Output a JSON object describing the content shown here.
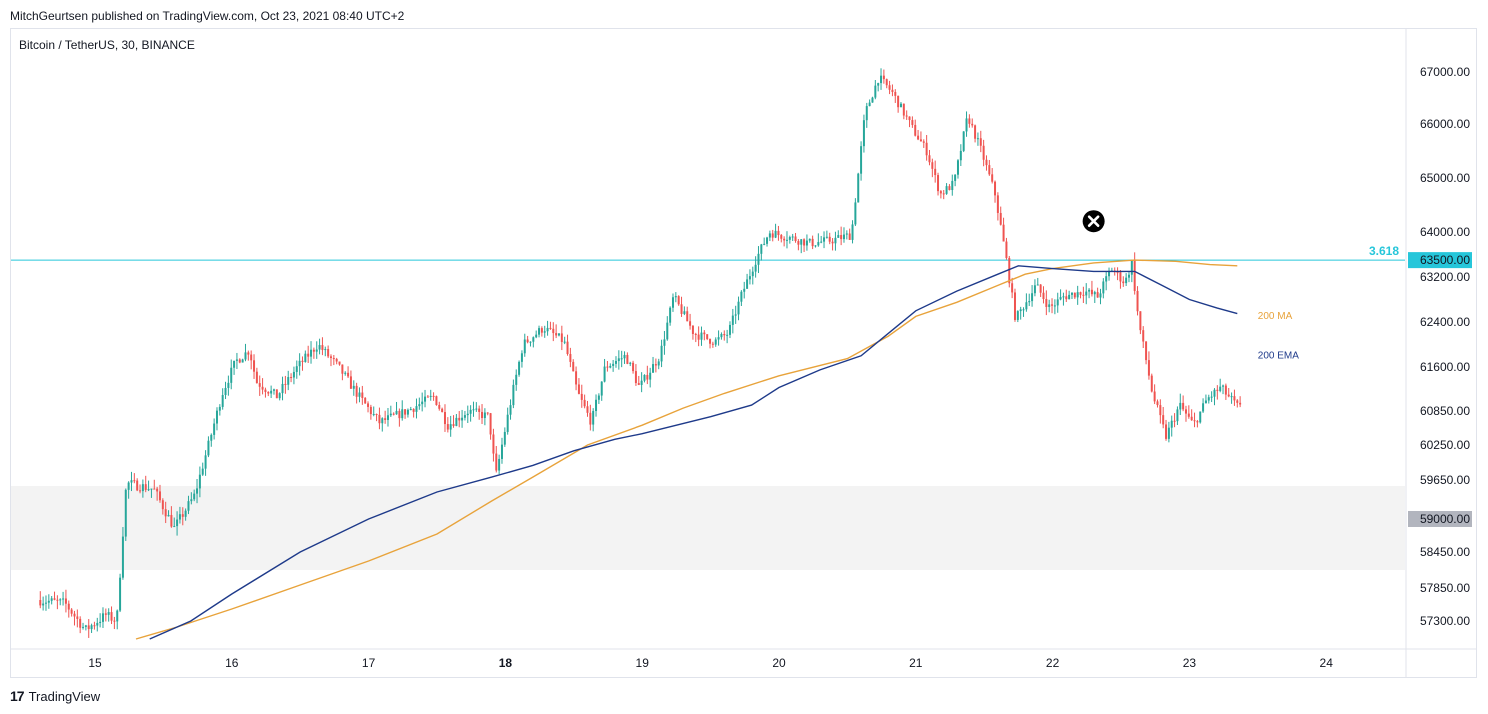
{
  "header": {
    "publisher_line": "MitchGeurtsen published on TradingView.com, Oct 23, 2021 08:40 UTC+2"
  },
  "symbol": {
    "title": "Bitcoin / TetherUS, 30, BINANCE"
  },
  "footer": {
    "brand_mark": "17",
    "brand_text": "TradingView"
  },
  "colors": {
    "up": "#26a69a",
    "down": "#ef5350",
    "ma": "#e8a33b",
    "ema": "#1e3a8a",
    "level": "#26c6da",
    "zone": "#f3f3f3",
    "grid": "#e0e3eb"
  },
  "chart_data": {
    "type": "candlestick",
    "title": "Bitcoin / TetherUS, 30, BINANCE",
    "x_ticks": [
      {
        "label": "15",
        "day": 15
      },
      {
        "label": "16",
        "day": 16
      },
      {
        "label": "17",
        "day": 17
      },
      {
        "label": "18",
        "day": 18,
        "bold": true
      },
      {
        "label": "19",
        "day": 19
      },
      {
        "label": "20",
        "day": 20
      },
      {
        "label": "21",
        "day": 21
      },
      {
        "label": "22",
        "day": 22
      },
      {
        "label": "23",
        "day": 23
      },
      {
        "label": "24",
        "day": 24
      }
    ],
    "y_ticks": [
      {
        "label": "67000.00",
        "value": 67000
      },
      {
        "label": "66000.00",
        "value": 66000
      },
      {
        "label": "65000.00",
        "value": 65000
      },
      {
        "label": "64000.00",
        "value": 64000
      },
      {
        "label": "63200.00",
        "value": 63200
      },
      {
        "label": "62400.00",
        "value": 62400
      },
      {
        "label": "61600.00",
        "value": 61600
      },
      {
        "label": "60850.00",
        "value": 60850
      },
      {
        "label": "60250.00",
        "value": 60250
      },
      {
        "label": "59650.00",
        "value": 59650
      },
      {
        "label": "58450.00",
        "value": 58450
      },
      {
        "label": "57850.00",
        "value": 57850
      },
      {
        "label": "57300.00",
        "value": 57300
      }
    ],
    "price_tags": [
      {
        "label": "63500.00",
        "value": 63500,
        "style": "level"
      },
      {
        "label": "59000.00",
        "value": 59000,
        "style": "zone"
      }
    ],
    "level_line": {
      "value": 63500,
      "label": "3.618"
    },
    "zone": {
      "from": 58150,
      "to": 59550
    },
    "series": [
      {
        "name": "200 MA",
        "points": [
          {
            "day": 15.3,
            "value": 57000
          },
          {
            "day": 15.6,
            "value": 57200
          },
          {
            "day": 16.0,
            "value": 57500
          },
          {
            "day": 16.5,
            "value": 57900
          },
          {
            "day": 17.0,
            "value": 58300
          },
          {
            "day": 17.5,
            "value": 58750
          },
          {
            "day": 17.9,
            "value": 59300
          },
          {
            "day": 18.2,
            "value": 59700
          },
          {
            "day": 18.6,
            "value": 60250
          },
          {
            "day": 19.0,
            "value": 60600
          },
          {
            "day": 19.3,
            "value": 60900
          },
          {
            "day": 19.6,
            "value": 61150
          },
          {
            "day": 20.0,
            "value": 61450
          },
          {
            "day": 20.5,
            "value": 61750
          },
          {
            "day": 20.8,
            "value": 62150
          },
          {
            "day": 21.0,
            "value": 62500
          },
          {
            "day": 21.3,
            "value": 62750
          },
          {
            "day": 21.6,
            "value": 63050
          },
          {
            "day": 21.8,
            "value": 63250
          },
          {
            "day": 22.0,
            "value": 63350
          },
          {
            "day": 22.3,
            "value": 63450
          },
          {
            "day": 22.6,
            "value": 63500
          },
          {
            "day": 22.9,
            "value": 63480
          },
          {
            "day": 23.15,
            "value": 63420
          },
          {
            "day": 23.35,
            "value": 63400
          }
        ]
      },
      {
        "name": "200 EMA",
        "points": [
          {
            "day": 15.4,
            "value": 57000
          },
          {
            "day": 15.7,
            "value": 57300
          },
          {
            "day": 16.0,
            "value": 57750
          },
          {
            "day": 16.5,
            "value": 58450
          },
          {
            "day": 17.0,
            "value": 59000
          },
          {
            "day": 17.5,
            "value": 59450
          },
          {
            "day": 17.9,
            "value": 59700
          },
          {
            "day": 18.2,
            "value": 59900
          },
          {
            "day": 18.5,
            "value": 60150
          },
          {
            "day": 18.8,
            "value": 60350
          },
          {
            "day": 19.0,
            "value": 60450
          },
          {
            "day": 19.5,
            "value": 60750
          },
          {
            "day": 19.8,
            "value": 60950
          },
          {
            "day": 20.0,
            "value": 61250
          },
          {
            "day": 20.3,
            "value": 61550
          },
          {
            "day": 20.6,
            "value": 61800
          },
          {
            "day": 20.8,
            "value": 62200
          },
          {
            "day": 21.0,
            "value": 62600
          },
          {
            "day": 21.3,
            "value": 62950
          },
          {
            "day": 21.6,
            "value": 63250
          },
          {
            "day": 21.75,
            "value": 63400
          },
          {
            "day": 22.0,
            "value": 63350
          },
          {
            "day": 22.3,
            "value": 63300
          },
          {
            "day": 22.6,
            "value": 63300
          },
          {
            "day": 22.8,
            "value": 63050
          },
          {
            "day": 23.0,
            "value": 62800
          },
          {
            "day": 23.2,
            "value": 62650
          },
          {
            "day": 23.35,
            "value": 62550
          }
        ]
      }
    ],
    "series_labels": [
      {
        "name": "200 MA",
        "color_key": "ma",
        "day": 23.5,
        "value": 62450
      },
      {
        "name": "200 EMA",
        "color_key": "ema",
        "day": 23.5,
        "value": 61750
      }
    ],
    "marker": {
      "type": "x-circle",
      "day": 22.3,
      "value": 64200
    },
    "price_path": [
      {
        "day": 14.6,
        "value": 57650
      },
      {
        "day": 14.8,
        "value": 57600
      },
      {
        "day": 14.95,
        "value": 57150
      },
      {
        "day": 15.1,
        "value": 57400
      },
      {
        "day": 15.18,
        "value": 57300
      },
      {
        "day": 15.25,
        "value": 59600
      },
      {
        "day": 15.45,
        "value": 59500
      },
      {
        "day": 15.6,
        "value": 58850
      },
      {
        "day": 15.75,
        "value": 59400
      },
      {
        "day": 15.85,
        "value": 60250
      },
      {
        "day": 15.95,
        "value": 61150
      },
      {
        "day": 16.05,
        "value": 61700
      },
      {
        "day": 16.15,
        "value": 61900
      },
      {
        "day": 16.2,
        "value": 61350
      },
      {
        "day": 16.35,
        "value": 61100
      },
      {
        "day": 16.5,
        "value": 61600
      },
      {
        "day": 16.65,
        "value": 62000
      },
      {
        "day": 16.8,
        "value": 61600
      },
      {
        "day": 16.95,
        "value": 61100
      },
      {
        "day": 17.1,
        "value": 60650
      },
      {
        "day": 17.3,
        "value": 60850
      },
      {
        "day": 17.5,
        "value": 61100
      },
      {
        "day": 17.6,
        "value": 60600
      },
      {
        "day": 17.75,
        "value": 60850
      },
      {
        "day": 17.9,
        "value": 60750
      },
      {
        "day": 17.95,
        "value": 59700
      },
      {
        "day": 18.05,
        "value": 60900
      },
      {
        "day": 18.15,
        "value": 62000
      },
      {
        "day": 18.3,
        "value": 62300
      },
      {
        "day": 18.45,
        "value": 62050
      },
      {
        "day": 18.55,
        "value": 61150
      },
      {
        "day": 18.65,
        "value": 60650
      },
      {
        "day": 18.75,
        "value": 61600
      },
      {
        "day": 18.9,
        "value": 61800
      },
      {
        "day": 19.0,
        "value": 61250
      },
      {
        "day": 19.15,
        "value": 61800
      },
      {
        "day": 19.25,
        "value": 62850
      },
      {
        "day": 19.4,
        "value": 62200
      },
      {
        "day": 19.55,
        "value": 62050
      },
      {
        "day": 19.65,
        "value": 62200
      },
      {
        "day": 19.75,
        "value": 62900
      },
      {
        "day": 19.85,
        "value": 63500
      },
      {
        "day": 19.95,
        "value": 64000
      },
      {
        "day": 20.1,
        "value": 63900
      },
      {
        "day": 20.25,
        "value": 63800
      },
      {
        "day": 20.4,
        "value": 63850
      },
      {
        "day": 20.55,
        "value": 63950
      },
      {
        "day": 20.65,
        "value": 66200
      },
      {
        "day": 20.75,
        "value": 66900
      },
      {
        "day": 20.85,
        "value": 66600
      },
      {
        "day": 21.0,
        "value": 65900
      },
      {
        "day": 21.1,
        "value": 65500
      },
      {
        "day": 21.2,
        "value": 64700
      },
      {
        "day": 21.3,
        "value": 64900
      },
      {
        "day": 21.4,
        "value": 66150
      },
      {
        "day": 21.5,
        "value": 65500
      },
      {
        "day": 21.6,
        "value": 64700
      },
      {
        "day": 21.68,
        "value": 63550
      },
      {
        "day": 21.75,
        "value": 62450
      },
      {
        "day": 21.9,
        "value": 63050
      },
      {
        "day": 22.0,
        "value": 62650
      },
      {
        "day": 22.1,
        "value": 62850
      },
      {
        "day": 22.25,
        "value": 62950
      },
      {
        "day": 22.35,
        "value": 62850
      },
      {
        "day": 22.45,
        "value": 63350
      },
      {
        "day": 22.55,
        "value": 63100
      },
      {
        "day": 22.6,
        "value": 63450
      },
      {
        "day": 22.65,
        "value": 62400
      },
      {
        "day": 22.75,
        "value": 61150
      },
      {
        "day": 22.85,
        "value": 60400
      },
      {
        "day": 22.95,
        "value": 60950
      },
      {
        "day": 23.05,
        "value": 60600
      },
      {
        "day": 23.15,
        "value": 61050
      },
      {
        "day": 23.25,
        "value": 61250
      },
      {
        "day": 23.38,
        "value": 60900
      }
    ]
  }
}
